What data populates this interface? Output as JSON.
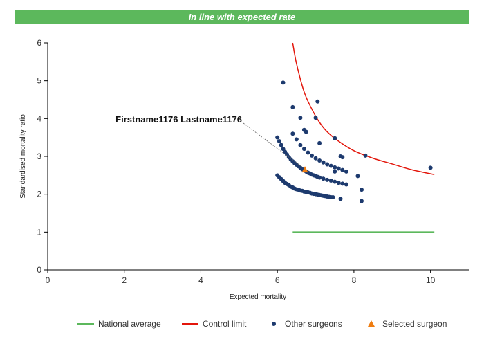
{
  "banner": {
    "text": "In line with expected rate"
  },
  "colors": {
    "banner": "#5cb85c",
    "national_average": "#5cb85c",
    "control_limit": "#e3160b",
    "other_surgeons": "#1d3a6e",
    "selected_surgeon": "#ef7d11"
  },
  "chart_data": {
    "type": "scatter",
    "xlabel": "Expected mortality",
    "ylabel": "Standardised mortality ratio",
    "xlim": [
      0,
      11
    ],
    "ylim": [
      0,
      6
    ],
    "xticks": [
      "0",
      "2",
      "4",
      "6",
      "8",
      "10"
    ],
    "yticks": [
      "0",
      "1",
      "2",
      "3",
      "4",
      "5",
      "6"
    ],
    "grid": false,
    "legend_position": "bottom",
    "annotation": {
      "text": "Firstname1176 Lastname1176",
      "target_series": "Selected surgeon"
    },
    "series": [
      {
        "name": "National average",
        "kind": "line",
        "x": [
          6.4,
          10.1
        ],
        "y": [
          1.0,
          1.0
        ]
      },
      {
        "name": "Control limit",
        "kind": "line",
        "x": [
          6.4,
          6.5,
          6.7,
          6.9,
          7.1,
          7.3,
          7.6,
          8.0,
          8.5,
          9.0,
          9.5,
          10.1
        ],
        "y": [
          6.0,
          5.45,
          4.7,
          4.25,
          3.9,
          3.65,
          3.4,
          3.15,
          2.95,
          2.8,
          2.65,
          2.52
        ]
      },
      {
        "name": "Other surgeons",
        "kind": "scatter",
        "x": [
          6.0,
          6.05,
          6.1,
          6.15,
          6.2,
          6.25,
          6.3,
          6.35,
          6.4,
          6.45,
          6.5,
          6.55,
          6.6,
          6.65,
          6.7,
          6.75,
          6.8,
          6.85,
          6.9,
          6.95,
          7.0,
          7.05,
          7.1,
          7.15,
          7.2,
          7.25,
          7.3,
          7.35,
          7.4,
          7.45,
          6.0,
          6.05,
          6.1,
          6.15,
          6.2,
          6.25,
          6.3,
          6.35,
          6.4,
          6.45,
          6.5,
          6.55,
          6.6,
          6.65,
          6.7,
          6.75,
          6.8,
          6.85,
          6.9,
          6.95,
          7.0,
          7.05,
          7.1,
          7.2,
          7.3,
          7.4,
          7.5,
          7.6,
          7.7,
          7.8,
          6.4,
          6.5,
          6.6,
          6.7,
          6.8,
          6.9,
          7.0,
          7.1,
          7.2,
          7.3,
          7.4,
          7.5,
          7.6,
          7.7,
          7.8,
          6.15,
          6.4,
          6.6,
          6.75,
          7.05,
          7.5,
          6.7,
          7.0,
          7.1,
          7.65,
          7.7,
          7.5,
          8.1,
          8.3,
          8.2,
          8.2,
          7.65,
          10.0
        ],
        "y": [
          2.5,
          2.45,
          2.4,
          2.35,
          2.3,
          2.27,
          2.24,
          2.2,
          2.18,
          2.15,
          2.13,
          2.12,
          2.1,
          2.09,
          2.07,
          2.06,
          2.05,
          2.04,
          2.02,
          2.01,
          2.0,
          1.99,
          1.98,
          1.97,
          1.96,
          1.95,
          1.94,
          1.93,
          1.92,
          1.92,
          3.5,
          3.4,
          3.3,
          3.2,
          3.12,
          3.05,
          2.98,
          2.92,
          2.87,
          2.82,
          2.78,
          2.74,
          2.7,
          2.66,
          2.63,
          2.6,
          2.57,
          2.55,
          2.52,
          2.5,
          2.48,
          2.46,
          2.44,
          2.41,
          2.38,
          2.36,
          2.33,
          2.3,
          2.28,
          2.26,
          3.6,
          3.45,
          3.3,
          3.2,
          3.1,
          3.02,
          2.95,
          2.89,
          2.84,
          2.79,
          2.75,
          2.71,
          2.68,
          2.64,
          2.6,
          4.95,
          4.3,
          4.02,
          3.65,
          4.45,
          3.48,
          3.7,
          4.02,
          3.35,
          3.0,
          2.98,
          2.6,
          2.48,
          3.02,
          2.12,
          1.82,
          1.88,
          2.7
        ]
      },
      {
        "name": "Selected surgeon",
        "kind": "scatter",
        "x": [
          6.72
        ],
        "y": [
          2.65
        ]
      }
    ]
  }
}
